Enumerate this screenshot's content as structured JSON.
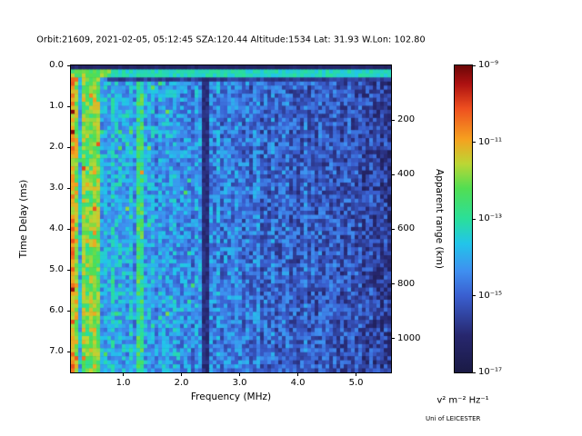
{
  "title": "Orbit:21609, 2021-02-05, 05:12:45 SZA:120.44 Altitude:1534 Lat: 31.93 W.Lon: 102.80",
  "credit": "Uni of LEICESTER",
  "chart_data": {
    "type": "heatmap",
    "title": "Orbit:21609, 2021-02-05, 05:12:45 SZA:120.44 Altitude:1534 Lat: 31.93 W.Lon: 102.80",
    "xlabel": "Frequency (MHz)",
    "ylabel_left": "Time Delay (ms)",
    "ylabel_right": "Apparent range (km)",
    "x_range": [
      0.1,
      5.6
    ],
    "y_range": [
      0,
      7.5
    ],
    "grid": false,
    "x_ticks": [
      1.0,
      2.0,
      3.0,
      4.0,
      5.0
    ],
    "x_tick_labels": [
      "1.0",
      "2.0",
      "3.0",
      "4.0",
      "5.0"
    ],
    "y_ticks": [
      0,
      1,
      2,
      3,
      4,
      5,
      6,
      7
    ],
    "y_tick_labels": [
      "0.0",
      "1.0",
      "2.0",
      "3.0",
      "4.0",
      "5.0",
      "6.0",
      "7.0"
    ],
    "right_ticks_km": [
      200,
      400,
      600,
      800,
      1000
    ],
    "right_tick_labels": [
      "200",
      "400",
      "600",
      "800",
      "1000"
    ],
    "colorbar": {
      "label": "v² m⁻² Hz⁻¹",
      "tick_labels": [
        "10⁻⁹",
        "10⁻¹¹",
        "10⁻¹³",
        "10⁻¹⁵",
        "10⁻¹⁷"
      ],
      "value_min_exp": -17,
      "value_max_exp": -9,
      "stops": [
        [
          0.0,
          "#1a1a45"
        ],
        [
          0.12,
          "#27276e"
        ],
        [
          0.25,
          "#3a5fd0"
        ],
        [
          0.33,
          "#3f8ff0"
        ],
        [
          0.42,
          "#22c5ea"
        ],
        [
          0.5,
          "#2adf9a"
        ],
        [
          0.6,
          "#52de52"
        ],
        [
          0.68,
          "#bcd634"
        ],
        [
          0.76,
          "#f6a01f"
        ],
        [
          0.86,
          "#ee4f1f"
        ],
        [
          0.94,
          "#ad1111"
        ],
        [
          1.0,
          "#6b0707"
        ]
      ]
    },
    "heatmap": {
      "description": "Noisy radar sounder ionogram: bright cyan surface-reflection line near 0.2 ms across all frequencies, bright cyan/green vertical striations below ~0.7 MHz, narrow bright column near 1.3 MHz, dark vertical cutoff band at 2.33-2.50 MHz, overall intensity decreasing toward higher frequency",
      "seed": 21609,
      "cols": 88,
      "rows": 76,
      "base_u_at_fmin": 0.42,
      "base_slope_per_mhz": -0.044,
      "noise_sd": 0.105,
      "sparkle_chance": 0.05,
      "sparkle_gain": 0.22,
      "dark_top_ms": 0.1,
      "surface_line": {
        "t0": 0.13,
        "t1": 0.3,
        "u": 0.42,
        "left_boost_freq": 0.8,
        "left_boost": 0.2
      },
      "dark_band": {
        "t0": 0.3,
        "t1": 0.44,
        "u": 0.13,
        "fmin": 0.75
      },
      "bright_left_freq_max": 0.68,
      "bright_col_chance": 0.45,
      "bright_col_gain": 0.17,
      "left_edge_freq": 0.2,
      "left_edge_gain": 0.15,
      "cyan_columns_mhz": [
        1.3
      ],
      "dark_columns_mhz": [
        [
          2.33,
          2.5
        ]
      ]
    }
  }
}
